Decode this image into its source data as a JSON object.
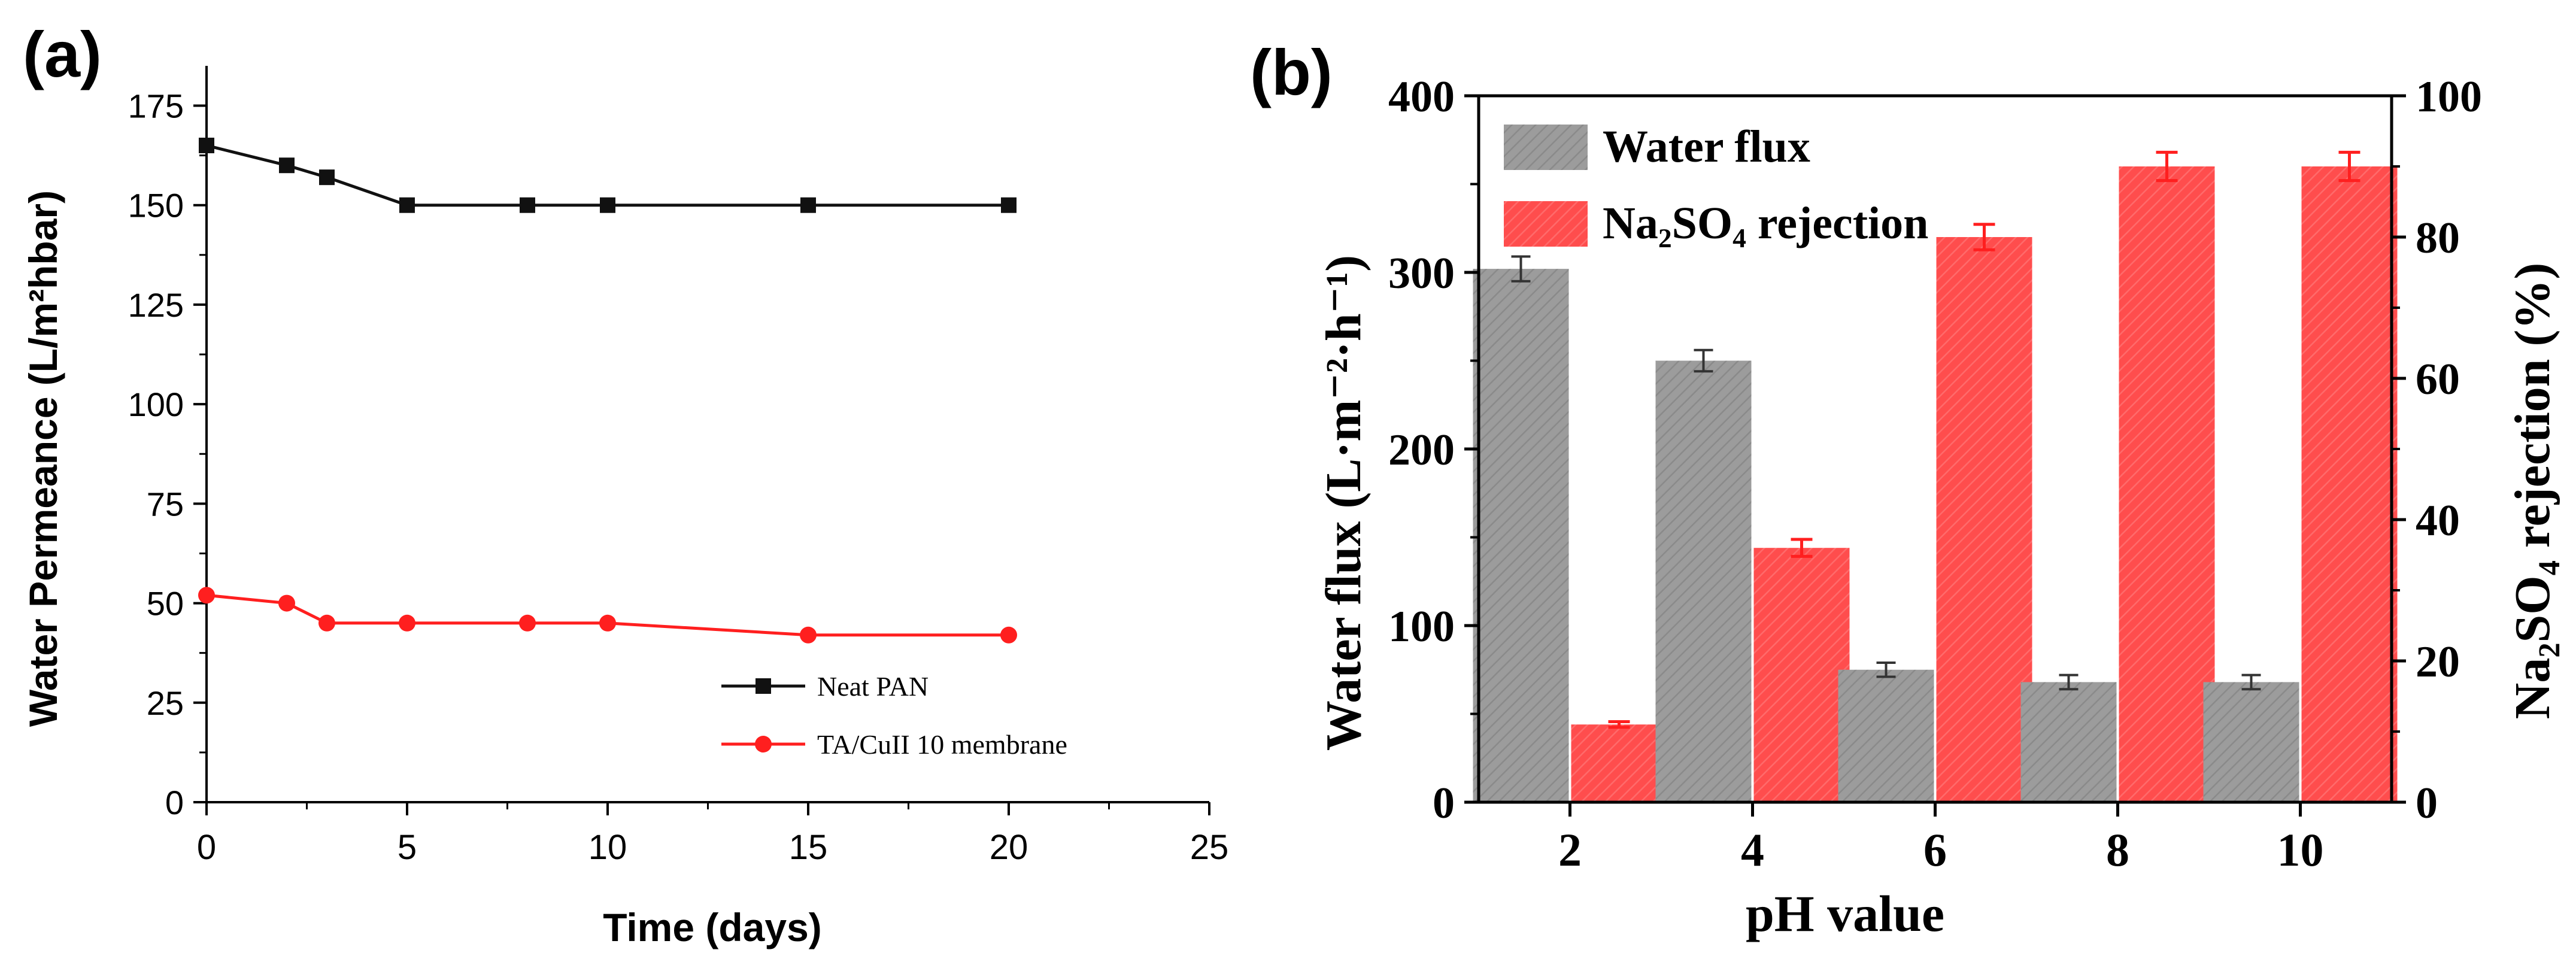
{
  "panel_a_label": "(a)",
  "panel_b_label": "(b)",
  "chart_data": [
    {
      "type": "line",
      "panel": "a",
      "title": "",
      "xlabel": "Time (days)",
      "ylabel": "Water Permeance (L/m²hbar)",
      "xlim": [
        0,
        25
      ],
      "ylim": [
        0,
        185
      ],
      "xticks": [
        0,
        5,
        10,
        15,
        20,
        25
      ],
      "yticks": [
        0,
        25,
        50,
        75,
        100,
        125,
        150,
        175
      ],
      "grid": false,
      "legend_position": "bottom-right",
      "series": [
        {
          "name": "Neat PAN",
          "color": "#111111",
          "marker": "square",
          "x": [
            0,
            2,
            3,
            5,
            8,
            10,
            15,
            20
          ],
          "y": [
            165,
            160,
            157,
            150,
            150,
            150,
            150,
            150
          ]
        },
        {
          "name": "TA/CuII 10 membrane",
          "color": "#ff1f1f",
          "marker": "circle",
          "x": [
            0,
            2,
            3,
            5,
            8,
            10,
            15,
            20
          ],
          "y": [
            52,
            50,
            45,
            45,
            45,
            45,
            42,
            42
          ]
        }
      ]
    },
    {
      "type": "bar",
      "panel": "b",
      "title": "",
      "xlabel": "pH value",
      "ylabel_left": "Water flux (L·m⁻²·h⁻¹)",
      "ylabel_right": "Na₂SO₄ rejection (%)",
      "categories": [
        "2",
        "4",
        "6",
        "8",
        "10"
      ],
      "ylim_left": [
        0,
        400
      ],
      "ylim_right": [
        0,
        100
      ],
      "yticks_left": [
        0,
        100,
        200,
        300,
        400
      ],
      "yticks_right": [
        0,
        20,
        40,
        60,
        80,
        100
      ],
      "grid": false,
      "legend_position": "top-left",
      "series": [
        {
          "name": "Water flux",
          "axis": "left",
          "color": "#9a9a9a",
          "values": [
            302,
            250,
            75,
            68,
            68
          ],
          "errors": [
            7,
            6,
            4,
            4,
            4
          ]
        },
        {
          "name": "Na₂SO₄ rejection",
          "axis": "right",
          "color": "#ff4a4a",
          "values": [
            11,
            36,
            80,
            90,
            90
          ],
          "errors": [
            0.4,
            1.2,
            1.8,
            2,
            2
          ]
        }
      ]
    }
  ]
}
